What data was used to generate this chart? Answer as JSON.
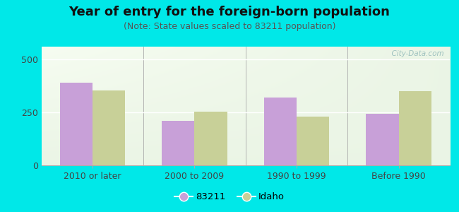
{
  "title": "Year of entry for the foreign-born population",
  "subtitle": "(Note: State values scaled to 83211 population)",
  "categories": [
    "2010 or later",
    "2000 to 2009",
    "1990 to 1999",
    "Before 1990"
  ],
  "series_83211": [
    390,
    210,
    320,
    245
  ],
  "series_idaho": [
    355,
    255,
    230,
    350
  ],
  "bar_color_83211": "#c8a0d8",
  "bar_color_idaho": "#c8d098",
  "ylim": [
    0,
    560
  ],
  "yticks": [
    0,
    250,
    500
  ],
  "background_outer": "#00e8e8",
  "title_fontsize": 13,
  "subtitle_fontsize": 9,
  "legend_label_83211": "83211",
  "legend_label_idaho": "Idaho",
  "watermark": "  City-Data.com",
  "tick_fontsize": 9
}
